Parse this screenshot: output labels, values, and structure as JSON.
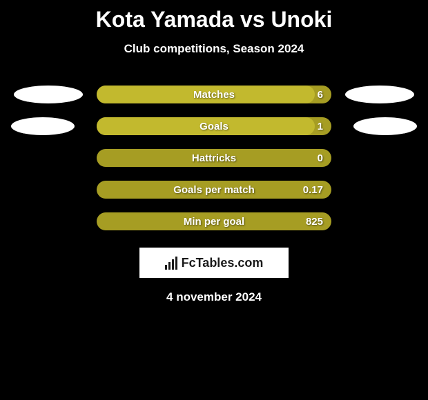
{
  "title": "Kota Yamada vs Unoki",
  "subtitle": "Club competitions, Season 2024",
  "bar_background_color": "#a69d23",
  "bar_fill_color": "#c2b92e",
  "ellipse_color": "#ffffff",
  "background_color": "#000000",
  "stats": [
    {
      "label": "Matches",
      "value": "6",
      "fill_percent": 93,
      "has_ellipses": true,
      "ellipse_indent": false
    },
    {
      "label": "Goals",
      "value": "1",
      "fill_percent": 93,
      "has_ellipses": true,
      "ellipse_indent": true
    },
    {
      "label": "Hattricks",
      "value": "0",
      "fill_percent": 0,
      "has_ellipses": false
    },
    {
      "label": "Goals per match",
      "value": "0.17",
      "fill_percent": 0,
      "has_ellipses": false
    },
    {
      "label": "Min per goal",
      "value": "825",
      "fill_percent": 0,
      "has_ellipses": false
    }
  ],
  "logo_text": "FcTables.com",
  "footer_date": "4 november 2024"
}
